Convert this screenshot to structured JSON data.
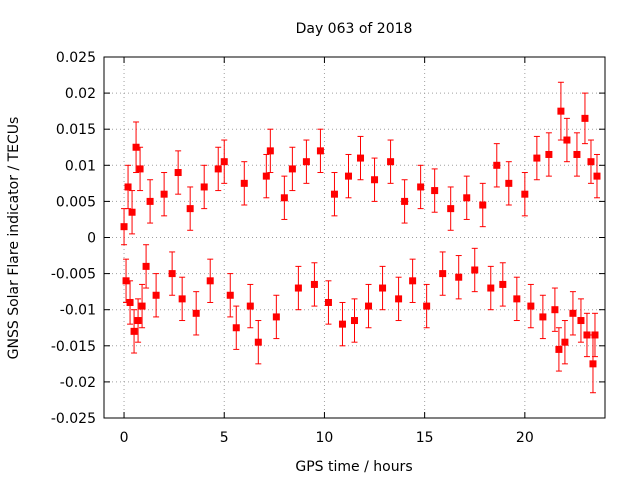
{
  "chart_data": {
    "type": "scatter",
    "title": "Day 063 of 2018",
    "xlabel": "GPS time / hours",
    "ylabel": "GNSS Solar Flare indicator / TECUs",
    "xlim": [
      -1,
      24
    ],
    "ylim": [
      -0.025,
      0.025
    ],
    "xticks": [
      0,
      5,
      10,
      15,
      20
    ],
    "xtick_labels": [
      "0",
      "5",
      "10",
      "15",
      "20"
    ],
    "yticks": [
      -0.025,
      -0.02,
      -0.015,
      -0.01,
      -0.005,
      0,
      0.005,
      0.01,
      0.015,
      0.02,
      0.025
    ],
    "ytick_labels": [
      "-0.025",
      "-0.02",
      "-0.015",
      "-0.01",
      "-0.005",
      "0",
      "0.005",
      "0.01",
      "0.015",
      "0.02",
      "0.025"
    ],
    "grid": true,
    "legend": "none",
    "series": [
      {
        "marker": "square",
        "error_bars": true,
        "color": "#ff0000",
        "points": [
          [
            0.0,
            0.0015,
            0.0025
          ],
          [
            0.1,
            -0.006,
            0.003
          ],
          [
            0.2,
            0.007,
            0.003
          ],
          [
            0.3,
            -0.009,
            0.003
          ],
          [
            0.4,
            0.0035,
            0.003
          ],
          [
            0.5,
            -0.013,
            0.003
          ],
          [
            0.6,
            0.0125,
            0.0035
          ],
          [
            0.7,
            -0.0115,
            0.003
          ],
          [
            0.8,
            0.0095,
            0.003
          ],
          [
            0.9,
            -0.0095,
            0.003
          ],
          [
            1.1,
            -0.004,
            0.003
          ],
          [
            1.3,
            0.005,
            0.003
          ],
          [
            1.6,
            -0.008,
            0.003
          ],
          [
            2.0,
            0.006,
            0.003
          ],
          [
            2.4,
            -0.005,
            0.003
          ],
          [
            2.7,
            0.009,
            0.003
          ],
          [
            2.9,
            -0.0085,
            0.003
          ],
          [
            3.3,
            0.004,
            0.003
          ],
          [
            3.6,
            -0.0105,
            0.003
          ],
          [
            4.0,
            0.007,
            0.003
          ],
          [
            4.3,
            -0.006,
            0.003
          ],
          [
            4.7,
            0.0095,
            0.003
          ],
          [
            5.0,
            0.0105,
            0.003
          ],
          [
            5.3,
            -0.008,
            0.003
          ],
          [
            5.6,
            -0.0125,
            0.003
          ],
          [
            6.0,
            0.0075,
            0.003
          ],
          [
            6.3,
            -0.0095,
            0.003
          ],
          [
            6.7,
            -0.0145,
            0.003
          ],
          [
            7.1,
            0.0085,
            0.003
          ],
          [
            7.3,
            0.012,
            0.003
          ],
          [
            7.6,
            -0.011,
            0.003
          ],
          [
            8.0,
            0.0055,
            0.003
          ],
          [
            8.4,
            0.0095,
            0.003
          ],
          [
            8.7,
            -0.007,
            0.003
          ],
          [
            9.1,
            0.0105,
            0.003
          ],
          [
            9.5,
            -0.0065,
            0.003
          ],
          [
            9.8,
            0.012,
            0.003
          ],
          [
            10.2,
            -0.009,
            0.003
          ],
          [
            10.5,
            0.006,
            0.003
          ],
          [
            10.9,
            -0.012,
            0.003
          ],
          [
            11.2,
            0.0085,
            0.003
          ],
          [
            11.5,
            -0.0115,
            0.003
          ],
          [
            11.8,
            0.011,
            0.003
          ],
          [
            12.2,
            -0.0095,
            0.003
          ],
          [
            12.5,
            0.008,
            0.003
          ],
          [
            12.9,
            -0.007,
            0.003
          ],
          [
            13.3,
            0.0105,
            0.003
          ],
          [
            13.7,
            -0.0085,
            0.003
          ],
          [
            14.0,
            0.005,
            0.003
          ],
          [
            14.4,
            -0.006,
            0.003
          ],
          [
            14.8,
            0.007,
            0.003
          ],
          [
            15.1,
            -0.0095,
            0.003
          ],
          [
            15.5,
            0.0065,
            0.003
          ],
          [
            15.9,
            -0.005,
            0.003
          ],
          [
            16.3,
            0.004,
            0.003
          ],
          [
            16.7,
            -0.0055,
            0.003
          ],
          [
            17.1,
            0.0055,
            0.003
          ],
          [
            17.5,
            -0.0045,
            0.003
          ],
          [
            17.9,
            0.0045,
            0.003
          ],
          [
            18.3,
            -0.007,
            0.003
          ],
          [
            18.6,
            0.01,
            0.003
          ],
          [
            18.9,
            -0.0065,
            0.003
          ],
          [
            19.2,
            0.0075,
            0.003
          ],
          [
            19.6,
            -0.0085,
            0.003
          ],
          [
            20.0,
            0.006,
            0.003
          ],
          [
            20.3,
            -0.0095,
            0.003
          ],
          [
            20.6,
            0.011,
            0.003
          ],
          [
            20.9,
            -0.011,
            0.003
          ],
          [
            21.2,
            0.0115,
            0.003
          ],
          [
            21.5,
            -0.01,
            0.003
          ],
          [
            21.7,
            -0.0155,
            0.003
          ],
          [
            21.8,
            0.0175,
            0.004
          ],
          [
            22.0,
            -0.0145,
            0.003
          ],
          [
            22.1,
            0.0135,
            0.003
          ],
          [
            22.4,
            -0.0105,
            0.003
          ],
          [
            22.6,
            0.0115,
            0.003
          ],
          [
            22.8,
            -0.0115,
            0.003
          ],
          [
            23.0,
            0.0165,
            0.0035
          ],
          [
            23.1,
            -0.0135,
            0.003
          ],
          [
            23.3,
            0.0105,
            0.003
          ],
          [
            23.4,
            -0.0175,
            0.004
          ],
          [
            23.5,
            -0.0135,
            0.003
          ],
          [
            23.6,
            0.0085,
            0.003
          ]
        ]
      }
    ]
  }
}
